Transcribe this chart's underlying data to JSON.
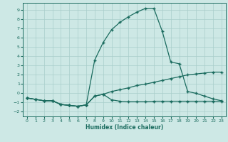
{
  "xlabel": "Humidex (Indice chaleur)",
  "xlim": [
    -0.5,
    23.5
  ],
  "ylim": [
    -2.5,
    9.8
  ],
  "xticks": [
    0,
    1,
    2,
    3,
    4,
    5,
    6,
    7,
    8,
    9,
    10,
    11,
    12,
    13,
    14,
    15,
    16,
    17,
    18,
    19,
    20,
    21,
    22,
    23
  ],
  "yticks": [
    -2,
    -1,
    0,
    1,
    2,
    3,
    4,
    5,
    6,
    7,
    8,
    9
  ],
  "bg_color": "#cde8e5",
  "line_color": "#1a6b5e",
  "grid_color": "#a8ceca",
  "peak_x": [
    0,
    1,
    2,
    3,
    4,
    5,
    6,
    7,
    8,
    9,
    10,
    11,
    12,
    13,
    14,
    15,
    16,
    17,
    18,
    19,
    20,
    21,
    22,
    23
  ],
  "peak_y": [
    -0.5,
    -0.65,
    -0.8,
    -0.8,
    -1.2,
    -1.3,
    -1.4,
    -1.25,
    3.6,
    5.5,
    6.9,
    7.7,
    8.3,
    8.8,
    9.2,
    9.2,
    6.7,
    3.4,
    3.2,
    0.2,
    0.0,
    -0.3,
    -0.6,
    -0.8
  ],
  "mid_x": [
    0,
    1,
    2,
    3,
    4,
    5,
    6,
    7,
    8,
    9,
    10,
    11,
    12,
    13,
    14,
    15,
    16,
    17,
    18,
    19,
    20,
    21,
    22,
    23
  ],
  "mid_y": [
    -0.5,
    -0.65,
    -0.8,
    -0.8,
    -1.2,
    -1.3,
    -1.4,
    -1.25,
    -0.3,
    -0.1,
    0.2,
    0.4,
    0.6,
    0.85,
    1.0,
    1.2,
    1.4,
    1.6,
    1.8,
    2.0,
    2.1,
    2.2,
    2.3,
    2.3
  ],
  "bot_x": [
    0,
    1,
    2,
    3,
    4,
    5,
    6,
    7,
    8,
    9,
    10,
    11,
    12,
    13,
    14,
    15,
    16,
    17,
    18,
    19,
    20,
    21,
    22,
    23
  ],
  "bot_y": [
    -0.5,
    -0.65,
    -0.8,
    -0.8,
    -1.2,
    -1.3,
    -1.4,
    -1.25,
    -0.3,
    -0.1,
    -0.7,
    -0.85,
    -0.9,
    -0.9,
    -0.9,
    -0.85,
    -0.85,
    -0.85,
    -0.85,
    -0.85,
    -0.85,
    -0.85,
    -0.85,
    -0.85
  ]
}
